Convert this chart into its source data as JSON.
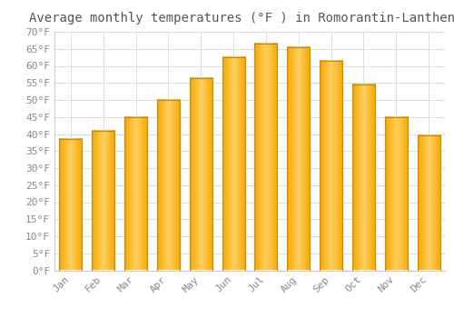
{
  "title": "Average monthly temperatures (°F ) in Romorantin-Lanthenay",
  "months": [
    "Jan",
    "Feb",
    "Mar",
    "Apr",
    "May",
    "Jun",
    "Jul",
    "Aug",
    "Sep",
    "Oct",
    "Nov",
    "Dec"
  ],
  "values": [
    38.5,
    41.0,
    45.0,
    50.0,
    56.5,
    62.5,
    66.5,
    65.5,
    61.5,
    54.5,
    45.0,
    39.5
  ],
  "bar_color_center": "#FFD060",
  "bar_color_edge": "#F5A800",
  "bar_outline_color": "#CC8800",
  "ylim": [
    0,
    70
  ],
  "ytick_step": 5,
  "background_color": "#FFFFFF",
  "grid_color": "#DDDDDD",
  "title_fontsize": 10,
  "tick_fontsize": 8,
  "font_family": "monospace",
  "title_color": "#555555",
  "tick_color": "#888888"
}
